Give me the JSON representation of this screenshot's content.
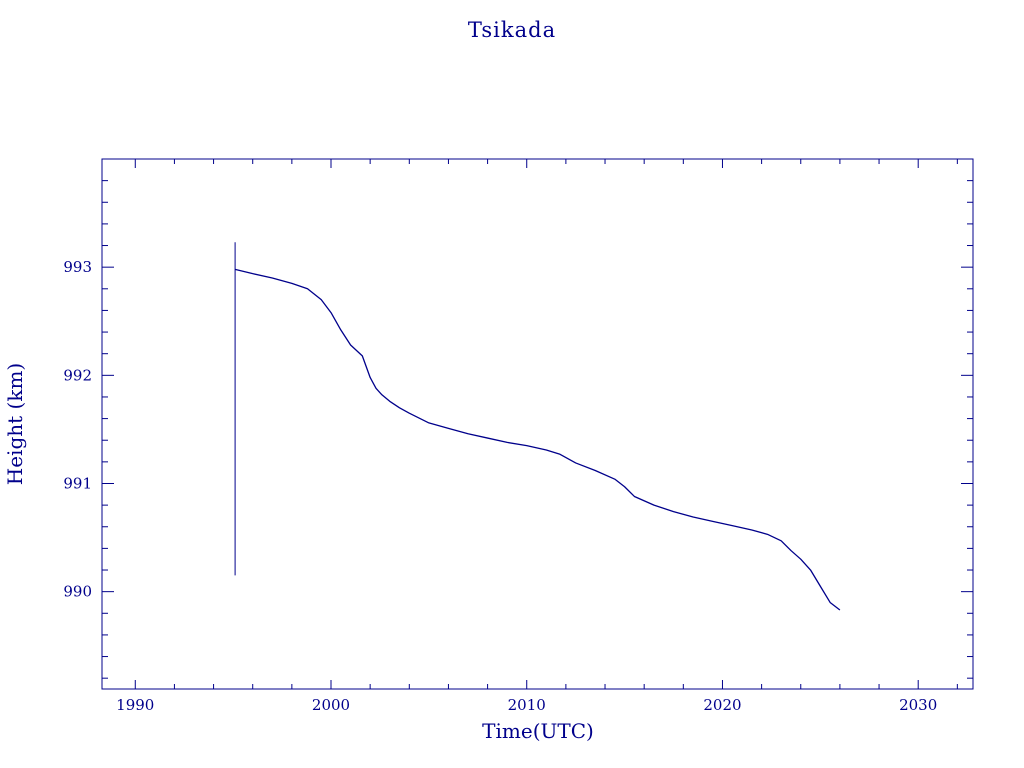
{
  "chart_data": {
    "type": "line",
    "title": "Tsikada",
    "xlabel": "Time(UTC)",
    "ylabel": "Height (km)",
    "xlim": [
      1988.3,
      2032.8
    ],
    "ylim": [
      989.1,
      994.0
    ],
    "x_ticks": [
      "1990",
      "2000",
      "2010",
      "2020",
      "2030"
    ],
    "y_ticks": [
      "990",
      "991",
      "992",
      "993"
    ],
    "grid": false,
    "line_color": "#00008b",
    "launch_spike": {
      "x": 1995.1,
      "y_from": 990.15,
      "y_to": 993.23
    },
    "series": [
      {
        "x": [
          1995.1,
          1996.0,
          1997.0,
          1998.0,
          1998.8,
          1999.5,
          2000.0,
          2000.5,
          2001.0,
          2001.6,
          2002.0,
          2002.3,
          2002.6,
          2003.0,
          2003.5,
          2004.0,
          2005.0,
          2006.0,
          2007.0,
          2008.0,
          2009.0,
          2010.0,
          2011.0,
          2011.7,
          2012.5,
          2013.5,
          2014.5,
          2015.0,
          2015.5,
          2016.5,
          2017.5,
          2018.5,
          2019.5,
          2020.5,
          2021.5,
          2022.3,
          2023.0,
          2023.5,
          2024.0,
          2024.5,
          2025.0,
          2025.5,
          2026.0
        ],
        "y": [
          992.98,
          992.94,
          992.9,
          992.85,
          992.8,
          992.7,
          992.58,
          992.42,
          992.28,
          992.18,
          991.98,
          991.88,
          991.82,
          991.76,
          991.7,
          991.65,
          991.56,
          991.51,
          991.46,
          991.42,
          991.38,
          991.35,
          991.31,
          991.27,
          991.19,
          991.12,
          991.04,
          990.97,
          990.88,
          990.8,
          990.74,
          990.69,
          990.65,
          990.61,
          990.57,
          990.53,
          990.47,
          990.38,
          990.3,
          990.2,
          990.05,
          989.9,
          989.83
        ]
      }
    ]
  }
}
